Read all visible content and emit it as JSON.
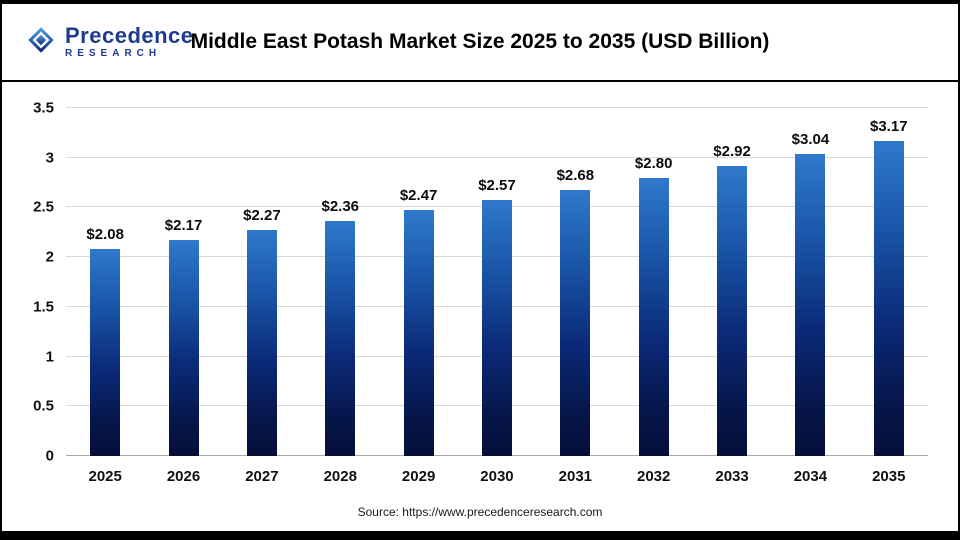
{
  "header": {
    "logo": {
      "name": "Precedence",
      "sub": "RESEARCH"
    },
    "title": "Middle East Potash Market Size 2025 to 2035 (USD Billion)"
  },
  "footer": {
    "source": "Source: https://www.precedenceresearch.com"
  },
  "chart_data": {
    "type": "bar",
    "title": "Middle East Potash Market Size 2025 to 2035 (USD Billion)",
    "categories": [
      "2025",
      "2026",
      "2027",
      "2028",
      "2029",
      "2030",
      "2031",
      "2032",
      "2033",
      "2034",
      "2035"
    ],
    "values": [
      2.08,
      2.17,
      2.27,
      2.36,
      2.47,
      2.57,
      2.68,
      2.8,
      2.92,
      3.04,
      3.17
    ],
    "labels": [
      "$2.08",
      "$2.17",
      "$2.27",
      "$2.36",
      "$2.47",
      "$2.57",
      "$2.68",
      "$2.80",
      "$2.92",
      "$3.04",
      "$3.17"
    ],
    "xlabel": "",
    "ylabel": "",
    "ylim": [
      0,
      3.5
    ],
    "ytick_values": [
      0,
      0.5,
      1,
      1.5,
      2,
      2.5,
      3,
      3.5
    ],
    "ytick_labels": [
      "0",
      "0.5",
      "1",
      "1.5",
      "2",
      "2.5",
      "3",
      "3.5"
    ],
    "grid": true,
    "legend": "none",
    "bar_color_top": "#2f79cc",
    "bar_color_bottom": "#050f3a"
  }
}
